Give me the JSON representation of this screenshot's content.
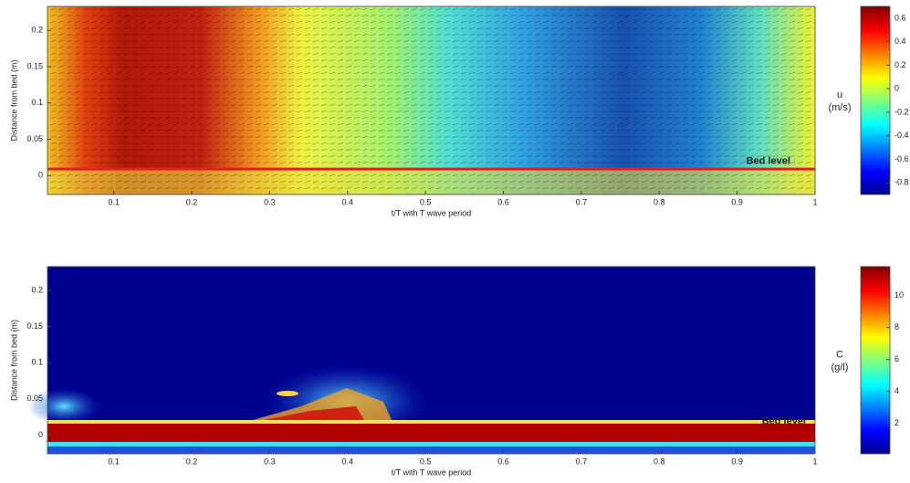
{
  "chart_data": [
    {
      "type": "heatmap",
      "x_label": "t/T with T wave period",
      "y_label": "Distance from bed (m)",
      "xlim": [
        0.015,
        1
      ],
      "ylim": [
        -0.026,
        0.233
      ],
      "xticks": [
        0.1,
        0.2,
        0.3,
        0.4,
        0.5,
        0.6,
        0.7,
        0.8,
        0.9,
        1
      ],
      "yticks": [
        0,
        0.05,
        0.1,
        0.15,
        0.2
      ],
      "colorbar_title": "u",
      "colorbar_unit": "(m/s)",
      "colormap": "jet",
      "clim": [
        -0.9,
        0.7
      ],
      "cticks": [
        -0.8,
        -0.6,
        -0.4,
        -0.2,
        0,
        0.2,
        0.4,
        0.6
      ],
      "annotation": {
        "text": "Bed level",
        "x": 0.94,
        "y": 0.02
      },
      "bed_line": {
        "y": 0.009,
        "color": "#e02020"
      }
    },
    {
      "type": "heatmap",
      "x_label": "t/T with T wave period",
      "y_label": "Distance from bed (m)",
      "xlim": [
        0.015,
        1
      ],
      "ylim": [
        -0.026,
        0.233
      ],
      "xticks": [
        0.1,
        0.2,
        0.3,
        0.4,
        0.5,
        0.6,
        0.7,
        0.8,
        0.9,
        1
      ],
      "yticks": [
        0,
        0.05,
        0.1,
        0.15,
        0.2
      ],
      "colorbar_title": "C",
      "colorbar_unit": "(g/l)",
      "colormap": "jet",
      "clim": [
        0.1,
        11.8
      ],
      "cticks": [
        2,
        4,
        6,
        8,
        10
      ],
      "annotation": {
        "text": "Bed level",
        "x": 0.96,
        "y": 0.019
      }
    }
  ]
}
